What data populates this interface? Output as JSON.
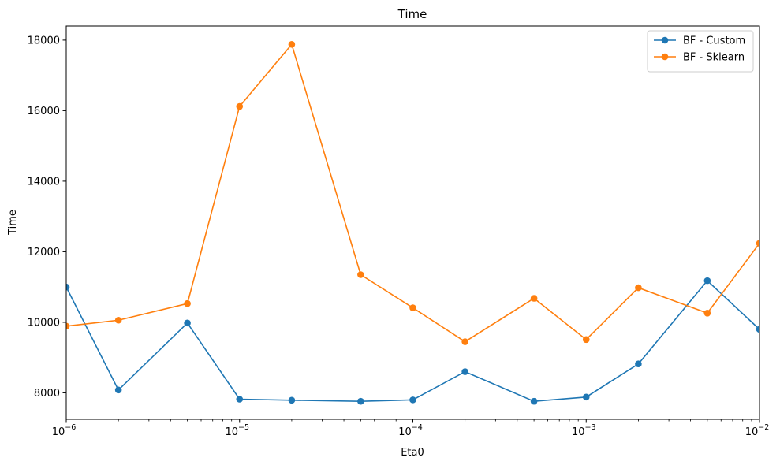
{
  "chart_data": {
    "type": "line",
    "title": "Time",
    "xlabel": "Eta0",
    "ylabel": "Time",
    "xscale": "log",
    "xlim": [
      1e-06,
      0.01
    ],
    "ylim": [
      7250,
      18400
    ],
    "x": [
      1e-06,
      2e-06,
      5e-06,
      1e-05,
      2e-05,
      5e-05,
      0.0001,
      0.0002,
      0.0005,
      0.001,
      0.002,
      0.005,
      0.01
    ],
    "series": [
      {
        "name": "BF - Custom",
        "color": "#1f77b4",
        "values": [
          11000,
          8080,
          9980,
          7820,
          7790,
          7760,
          7800,
          8600,
          7760,
          7880,
          8820,
          11180,
          9800
        ]
      },
      {
        "name": "BF - Sklearn",
        "color": "#ff7f0e",
        "values": [
          9890,
          10060,
          10530,
          16120,
          17880,
          11350,
          10410,
          9450,
          10680,
          9510,
          10980,
          10260,
          12240
        ]
      }
    ],
    "x_tick_labels": [
      {
        "base": "10",
        "exp": "−6",
        "value": 1e-06
      },
      {
        "base": "10",
        "exp": "−5",
        "value": 1e-05
      },
      {
        "base": "10",
        "exp": "−4",
        "value": 0.0001
      },
      {
        "base": "10",
        "exp": "−3",
        "value": 0.001
      },
      {
        "base": "10",
        "exp": "−2",
        "value": 0.01
      }
    ],
    "y_ticks": [
      8000,
      10000,
      12000,
      14000,
      16000,
      18000
    ],
    "y_tick_labels": [
      "8000",
      "10000",
      "12000",
      "14000",
      "16000",
      "18000"
    ],
    "legend_position": "top-right",
    "grid": false
  }
}
